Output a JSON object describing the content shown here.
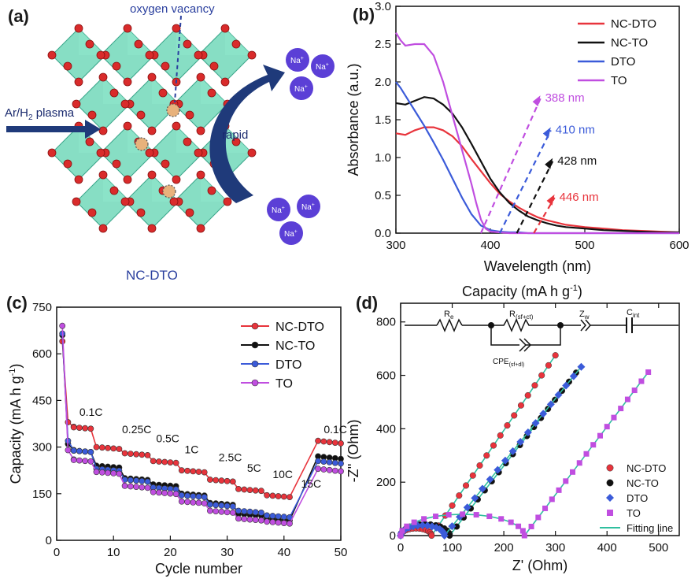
{
  "panels": {
    "a": {
      "label": "(a)",
      "oxygen_vacancy": "oxygen vacancy",
      "plasma_text": "Ar/H",
      "plasma_sub": "2",
      "plasma_text2": " plasma",
      "rapid": "rapid",
      "na_ion": "Na",
      "na_sup": "+",
      "caption": "NC-DTO",
      "colors": {
        "octahedron": "#5fd3b0",
        "oxygen": "#d92b2b",
        "vacancy": "#e8b27c",
        "na": "#5b3fd6",
        "arrow": "#1f3a7a"
      }
    },
    "b": {
      "label": "(b)"
    },
    "c": {
      "label": "(c)"
    },
    "d": {
      "label": "(d)",
      "top_axis_title": "Capacity (mA h g",
      "top_axis_sup": "-1",
      "top_axis_close": ")",
      "circuit": {
        "re_base": "R",
        "re_sub": "e",
        "rsf_base": "R",
        "rsf_sub": "(sf+ct)",
        "cpe_base": "CPE",
        "cpe_sub": "(sf+dl)",
        "zw_base": "Z",
        "zw_sub": "w",
        "cint_base": "C",
        "cint_sub": "int"
      }
    }
  },
  "chart_data": [
    {
      "panel": "b",
      "type": "line",
      "xlabel": "Wavelength (nm)",
      "ylabel": "Absorbance (a.u.)",
      "xlim": [
        300,
        600
      ],
      "ylim": [
        0,
        3.0
      ],
      "xticks": [
        300,
        400,
        500,
        600
      ],
      "yticks": [
        0.0,
        0.5,
        1.0,
        1.5,
        2.0,
        2.5,
        3.0
      ],
      "legend_position": "top-right",
      "series": [
        {
          "name": "NC-DTO",
          "color": "#e8343c",
          "x": [
            300,
            310,
            320,
            330,
            340,
            350,
            360,
            370,
            380,
            390,
            400,
            410,
            420,
            430,
            440,
            450,
            460,
            470,
            480,
            500,
            520,
            540,
            560,
            580,
            600
          ],
          "y": [
            1.32,
            1.3,
            1.36,
            1.4,
            1.4,
            1.36,
            1.28,
            1.15,
            0.98,
            0.82,
            0.66,
            0.52,
            0.42,
            0.34,
            0.27,
            0.21,
            0.17,
            0.14,
            0.11,
            0.08,
            0.06,
            0.04,
            0.03,
            0.02,
            0.01
          ]
        },
        {
          "name": "NC-TO",
          "color": "#111111",
          "x": [
            300,
            310,
            320,
            330,
            340,
            350,
            360,
            370,
            380,
            390,
            400,
            410,
            420,
            430,
            440,
            450,
            460,
            470,
            480,
            500,
            520,
            540,
            560,
            580,
            600
          ],
          "y": [
            1.72,
            1.7,
            1.75,
            1.8,
            1.78,
            1.7,
            1.58,
            1.4,
            1.18,
            0.95,
            0.72,
            0.54,
            0.4,
            0.3,
            0.22,
            0.17,
            0.13,
            0.1,
            0.08,
            0.06,
            0.04,
            0.03,
            0.02,
            0.01,
            0.01
          ]
        },
        {
          "name": "DTO",
          "color": "#3b5bd9",
          "x": [
            300,
            305,
            310,
            320,
            330,
            340,
            350,
            360,
            370,
            380,
            390,
            400,
            410,
            420,
            430,
            440,
            460,
            500,
            600
          ],
          "y": [
            2.0,
            1.92,
            1.82,
            1.62,
            1.42,
            1.2,
            0.97,
            0.72,
            0.47,
            0.25,
            0.1,
            0.04,
            0.02,
            0.01,
            0.01,
            0.0,
            0.0,
            0.0,
            0.0
          ]
        },
        {
          "name": "TO",
          "color": "#c04ee0",
          "x": [
            300,
            305,
            310,
            320,
            330,
            340,
            350,
            360,
            370,
            380,
            385,
            390,
            395,
            400,
            410,
            420,
            440,
            500,
            600
          ],
          "y": [
            2.65,
            2.55,
            2.48,
            2.5,
            2.5,
            2.35,
            2.0,
            1.55,
            1.1,
            0.65,
            0.4,
            0.18,
            0.06,
            0.02,
            0.01,
            0.0,
            0.0,
            0.0,
            0.0
          ]
        }
      ],
      "annotations": [
        {
          "text": "388 nm",
          "color": "#c04ee0",
          "x0": 390,
          "x1": 453,
          "y1": 1.78
        },
        {
          "text": "410 nm",
          "color": "#3b5bd9",
          "x0": 410,
          "x1": 464,
          "y1": 1.36
        },
        {
          "text": "428 nm",
          "color": "#111111",
          "x0": 428,
          "x1": 466,
          "y1": 0.95
        },
        {
          "text": "446 nm",
          "color": "#e8343c",
          "x0": 446,
          "x1": 468,
          "y1": 0.47
        }
      ]
    },
    {
      "panel": "c",
      "type": "scatter",
      "xlabel": "Cycle number",
      "ylabel": "Capacity (mA h g",
      "ylabel_sup": "-1",
      "ylabel_close": ")",
      "xlim": [
        0,
        50
      ],
      "ylim": [
        0,
        750
      ],
      "xticks": [
        0,
        10,
        20,
        30,
        40,
        50
      ],
      "yticks": [
        0,
        150,
        300,
        450,
        600,
        750
      ],
      "legend_position": "top-right",
      "rate_labels": [
        {
          "text": "0.1C",
          "x": 4.0,
          "y": 400
        },
        {
          "text": "0.25C",
          "x": 11.5,
          "y": 345
        },
        {
          "text": "0.5C",
          "x": 17.5,
          "y": 315
        },
        {
          "text": "1C",
          "x": 22.5,
          "y": 280
        },
        {
          "text": "2.5C",
          "x": 28.5,
          "y": 255
        },
        {
          "text": "5C",
          "x": 33.5,
          "y": 220
        },
        {
          "text": "10C",
          "x": 38.0,
          "y": 200
        },
        {
          "text": "15C",
          "x": 43.0,
          "y": 170
        },
        {
          "text": "0.1C",
          "x": 47.0,
          "y": 345
        }
      ],
      "series": [
        {
          "name": "NC-DTO",
          "color": "#e8343c",
          "first": [
            640,
            380
          ],
          "steps": [
            365,
            300,
            280,
            255,
            225,
            195,
            165,
            145
          ],
          "recovery": 320
        },
        {
          "name": "NC-TO",
          "color": "#111111",
          "first": [
            660,
            310
          ],
          "steps": [
            290,
            240,
            200,
            180,
            150,
            120,
            85,
            70
          ],
          "recovery": 270
        },
        {
          "name": "DTO",
          "color": "#3b5bd9",
          "first": [
            665,
            320
          ],
          "steps": [
            290,
            230,
            195,
            170,
            145,
            115,
            95,
            80
          ],
          "recovery": 255
        },
        {
          "name": "TO",
          "color": "#c04ee0",
          "first": [
            690,
            290
          ],
          "steps": [
            260,
            220,
            175,
            155,
            125,
            95,
            70,
            60
          ],
          "recovery": 230
        }
      ]
    },
    {
      "panel": "d",
      "type": "scatter",
      "xlabel": "Z' (Ohm)",
      "ylabel": "-Z'' (Ohm)",
      "xlim": [
        0,
        540
      ],
      "ylim": [
        0,
        870
      ],
      "xticks": [
        0,
        100,
        200,
        300,
        400,
        500
      ],
      "yticks": [
        0,
        200,
        400,
        600,
        800
      ],
      "legend_position": "bottom-right",
      "series": [
        {
          "name": "NC-DTO",
          "color": "#e8343c",
          "marker": "circle",
          "semicircle_end": 60,
          "line_end": [
            300,
            675
          ]
        },
        {
          "name": "NC-TO",
          "color": "#111111",
          "marker": "circle",
          "semicircle_end": 95,
          "line_end": [
            340,
            610
          ]
        },
        {
          "name": "DTO",
          "color": "#3b5bd9",
          "marker": "diamond",
          "semicircle_end": 85,
          "line_end": [
            350,
            632
          ]
        },
        {
          "name": "TO",
          "color": "#c04ee0",
          "marker": "square",
          "semicircle_end": 240,
          "line_end": [
            480,
            612
          ]
        },
        {
          "name": "Fitting line",
          "color": "#2fbf9f",
          "marker": "line"
        }
      ]
    }
  ]
}
